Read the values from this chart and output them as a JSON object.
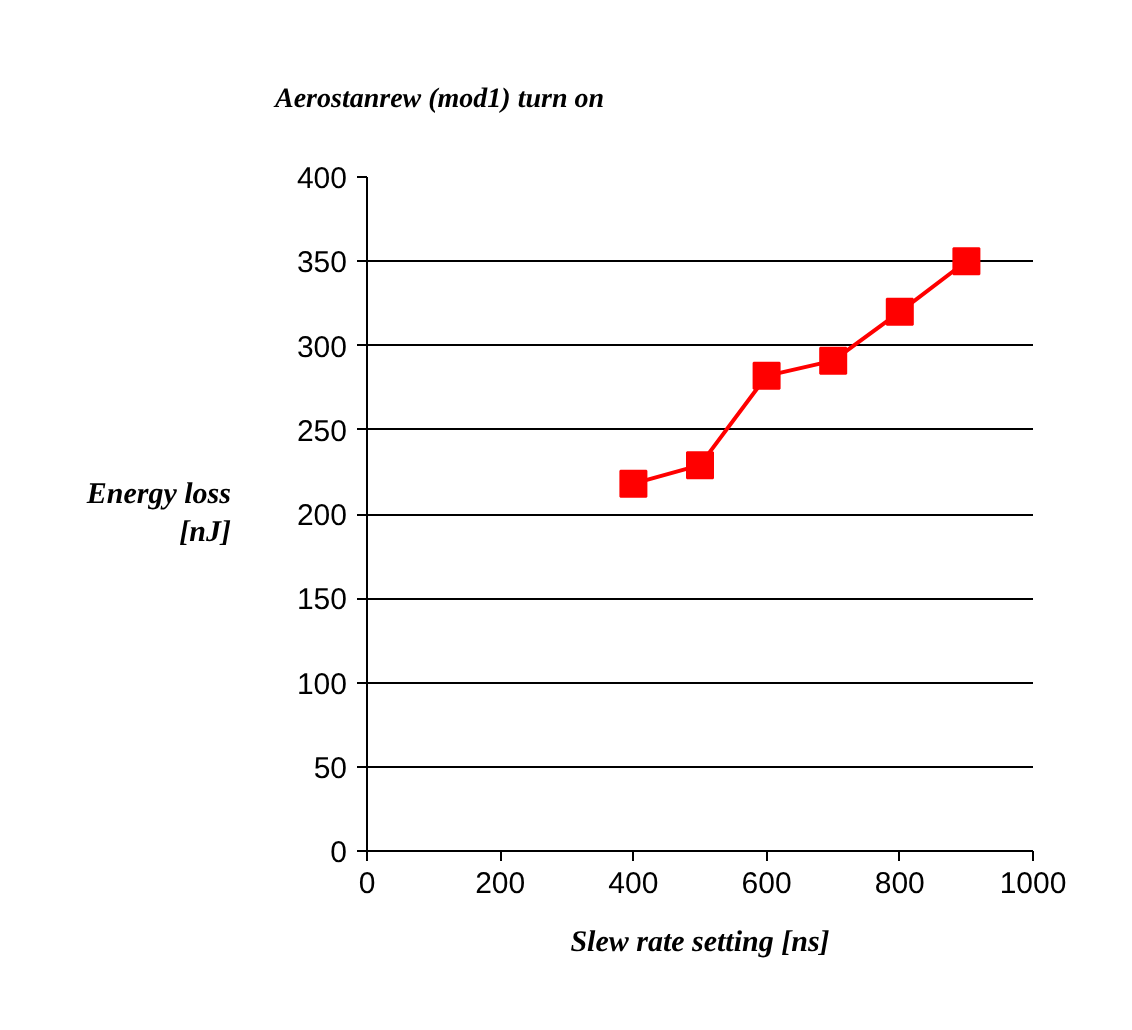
{
  "chart_data": {
    "type": "line",
    "title": "Aerostanrew (mod1) turn on",
    "xlabel": "Slew rate setting [ns]",
    "ylabel": "Energy loss\n[nJ]",
    "x": [
      400,
      500,
      600,
      700,
      800,
      900
    ],
    "series": [
      {
        "color": "#ff0000",
        "values": [
          218,
          229,
          282,
          291,
          320,
          350
        ]
      }
    ],
    "xlim": [
      0,
      1000
    ],
    "xticks": [
      0,
      200,
      400,
      600,
      800,
      1000
    ],
    "ylim": [
      0,
      400
    ],
    "yticks": [
      0,
      50,
      100,
      150,
      200,
      250,
      300,
      350,
      400
    ],
    "grid": "y",
    "marker": "square",
    "line_style": "solid"
  }
}
